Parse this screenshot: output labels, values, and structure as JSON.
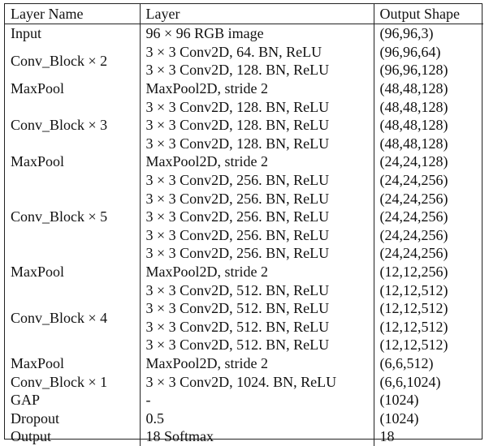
{
  "table": {
    "headers": [
      "Layer Name",
      "Layer",
      "Output Shape"
    ],
    "groups": [
      {
        "name": "Input",
        "rows": [
          {
            "layer": "96 × 96 RGB image",
            "shape": "(96,96,3)"
          }
        ]
      },
      {
        "name": "Conv_Block × 2",
        "rows": [
          {
            "layer": "3 × 3 Conv2D, 64. BN, ReLU",
            "shape": "(96,96,64)"
          },
          {
            "layer": "3 × 3 Conv2D, 128. BN, ReLU",
            "shape": "(96,96,128)"
          }
        ]
      },
      {
        "name": "MaxPool",
        "rows": [
          {
            "layer": "MaxPool2D, stride 2",
            "shape": "(48,48,128)"
          }
        ]
      },
      {
        "name": "Conv_Block × 3",
        "rows": [
          {
            "layer": "3 × 3 Conv2D, 128. BN, ReLU",
            "shape": "(48,48,128)"
          },
          {
            "layer": "3 × 3 Conv2D, 128. BN, ReLU",
            "shape": "(48,48,128)"
          },
          {
            "layer": "3 × 3 Conv2D, 128. BN, ReLU",
            "shape": "(48,48,128)"
          }
        ]
      },
      {
        "name": "MaxPool",
        "rows": [
          {
            "layer": "MaxPool2D, stride 2",
            "shape": "(24,24,128)"
          }
        ]
      },
      {
        "name": "Conv_Block × 5",
        "rows": [
          {
            "layer": "3 × 3 Conv2D, 256. BN, ReLU",
            "shape": "(24,24,256)"
          },
          {
            "layer": "3 × 3 Conv2D, 256. BN, ReLU",
            "shape": "(24,24,256)"
          },
          {
            "layer": "3 × 3 Conv2D, 256. BN, ReLU",
            "shape": "(24,24,256)"
          },
          {
            "layer": "3 × 3 Conv2D, 256. BN, ReLU",
            "shape": "(24,24,256)"
          },
          {
            "layer": "3 × 3 Conv2D, 256. BN, ReLU",
            "shape": "(24,24,256)"
          }
        ]
      },
      {
        "name": "MaxPool",
        "rows": [
          {
            "layer": "MaxPool2D, stride 2",
            "shape": "(12,12,256)"
          }
        ]
      },
      {
        "name": "Conv_Block × 4",
        "rows": [
          {
            "layer": "3 × 3 Conv2D, 512. BN, ReLU",
            "shape": "(12,12,512)"
          },
          {
            "layer": "3 × 3 Conv2D, 512. BN, ReLU",
            "shape": "(12,12,512)"
          },
          {
            "layer": "3 × 3 Conv2D, 512. BN, ReLU",
            "shape": "(12,12,512)"
          },
          {
            "layer": "3 × 3 Conv2D, 512. BN, ReLU",
            "shape": "(12,12,512)"
          }
        ]
      },
      {
        "name": "MaxPool",
        "rows": [
          {
            "layer": "MaxPool2D, stride 2",
            "shape": "(6,6,512)"
          }
        ]
      },
      {
        "name": "Conv_Block × 1",
        "rows": [
          {
            "layer": "3 × 3 Conv2D, 1024. BN, ReLU",
            "shape": "(6,6,1024)"
          }
        ]
      },
      {
        "name": "GAP",
        "rows": [
          {
            "layer": "-",
            "shape": "(1024)"
          }
        ]
      },
      {
        "name": "Dropout",
        "rows": [
          {
            "layer": "0.5",
            "shape": "(1024)"
          }
        ]
      },
      {
        "name": "Output",
        "rows": [
          {
            "layer": "18 Softmax",
            "shape": "18"
          }
        ]
      }
    ]
  }
}
